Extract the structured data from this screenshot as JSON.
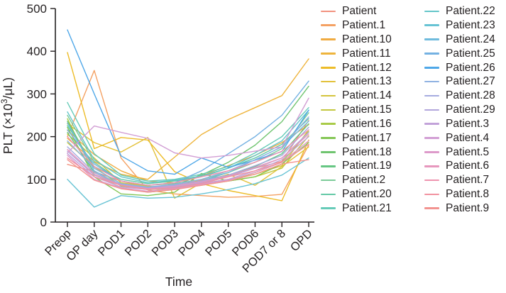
{
  "figure": {
    "background": "#ffffff",
    "text_color": "#231f20",
    "axis_color": "#231f20"
  },
  "chart_data": {
    "type": "line",
    "title": "",
    "xlabel": "Time",
    "ylabel": "PLT (×10³/μL)",
    "ylabel_parts": {
      "pre": "PLT (×10",
      "sup": "3",
      "post": "/μL)"
    },
    "ylim": [
      0,
      500
    ],
    "yticks": [
      0,
      100,
      200,
      300,
      400,
      500
    ],
    "categories": [
      "Preop",
      "OP day",
      "POD1",
      "POD2",
      "POD3",
      "POD4",
      "POD5",
      "POD6",
      "POD7 or 8",
      "OPD"
    ],
    "grid": false,
    "legend_position": "right-two-columns",
    "series": [
      {
        "name": "Patient",
        "color": "#f2917e",
        "values": [
          135,
          118,
          96,
          82,
          86,
          98,
          110,
          126,
          142,
          238
        ]
      },
      {
        "name": "Patient.1",
        "color": "#f4a163",
        "values": [
          200,
          355,
          150,
          75,
          66,
          62,
          58,
          60,
          65,
          180
        ]
      },
      {
        "name": "Patient.10",
        "color": "#f0ab41",
        "values": [
          215,
          158,
          120,
          96,
          92,
          108,
          132,
          156,
          186,
          228
        ]
      },
      {
        "name": "Patient.11",
        "color": "#eeb43c",
        "values": [
          196,
          142,
          112,
          100,
          152,
          205,
          240,
          268,
          296,
          382
        ]
      },
      {
        "name": "Patient.12",
        "color": "#edbc28",
        "values": [
          397,
          172,
          198,
          192,
          118,
          90,
          74,
          62,
          50,
          192
        ]
      },
      {
        "name": "Patient.13",
        "color": "#e3c13a",
        "values": [
          230,
          186,
          164,
          198,
          56,
          92,
          112,
          86,
          130,
          176
        ]
      },
      {
        "name": "Patient.14",
        "color": "#d4c43c",
        "values": [
          206,
          150,
          92,
          84,
          80,
          90,
          100,
          112,
          132,
          216
        ]
      },
      {
        "name": "Patient.15",
        "color": "#c2c73e",
        "values": [
          186,
          130,
          84,
          76,
          78,
          86,
          96,
          106,
          126,
          202
        ]
      },
      {
        "name": "Patient.16",
        "color": "#a9cb48",
        "values": [
          242,
          112,
          80,
          70,
          76,
          88,
          98,
          116,
          140,
          212
        ]
      },
      {
        "name": "Patient.17",
        "color": "#84c655",
        "values": [
          222,
          106,
          66,
          62,
          70,
          114,
          96,
          106,
          136,
          186
        ]
      },
      {
        "name": "Patient.18",
        "color": "#6fc46f",
        "values": [
          236,
          126,
          90,
          80,
          86,
          110,
          140,
          180,
          235,
          318
        ]
      },
      {
        "name": "Patient.19",
        "color": "#66c683",
        "values": [
          210,
          116,
          86,
          78,
          82,
          96,
          110,
          130,
          160,
          230
        ]
      },
      {
        "name": "Patient.2",
        "color": "#7ccb98",
        "values": [
          250,
          140,
          96,
          86,
          90,
          100,
          116,
          140,
          172,
          256
        ]
      },
      {
        "name": "Patient.20",
        "color": "#63c9a6",
        "values": [
          226,
          130,
          100,
          90,
          96,
          106,
          126,
          150,
          182,
          242
        ]
      },
      {
        "name": "Patient.21",
        "color": "#66cbb8",
        "values": [
          280,
          160,
          110,
          96,
          100,
          112,
          130,
          162,
          200,
          268
        ]
      },
      {
        "name": "Patient.22",
        "color": "#63c5c9",
        "values": [
          258,
          146,
          106,
          92,
          98,
          108,
          126,
          156,
          190,
          262
        ]
      },
      {
        "name": "Patient.23",
        "color": "#67c3d4",
        "values": [
          100,
          35,
          62,
          56,
          58,
          66,
          76,
          90,
          110,
          150
        ]
      },
      {
        "name": "Patient.24",
        "color": "#6fbbdd",
        "values": [
          232,
          120,
          86,
          76,
          80,
          96,
          116,
          146,
          176,
          236
        ]
      },
      {
        "name": "Patient.25",
        "color": "#74b1e2",
        "values": [
          216,
          136,
          96,
          86,
          92,
          120,
          160,
          200,
          250,
          330
        ]
      },
      {
        "name": "Patient.26",
        "color": "#4ea7e8",
        "values": [
          450,
          300,
          155,
          120,
          112,
          150,
          128,
          145,
          165,
          262
        ]
      },
      {
        "name": "Patient.27",
        "color": "#8fb2e2",
        "values": [
          190,
          126,
          90,
          82,
          88,
          100,
          120,
          146,
          176,
          246
        ]
      },
      {
        "name": "Patient.28",
        "color": "#a5abe0",
        "values": [
          176,
          116,
          88,
          80,
          86,
          96,
          110,
          132,
          156,
          222
        ]
      },
      {
        "name": "Patient.29",
        "color": "#b2a6dc",
        "values": [
          166,
          110,
          86,
          78,
          82,
          92,
          106,
          126,
          150,
          210
        ]
      },
      {
        "name": "Patient.3",
        "color": "#c2a2d9",
        "values": [
          160,
          106,
          82,
          76,
          80,
          90,
          100,
          120,
          146,
          200
        ]
      },
      {
        "name": "Patient.4",
        "color": "#d29ed4",
        "values": [
          162,
          225,
          210,
          196,
          162,
          150,
          156,
          166,
          176,
          290
        ]
      },
      {
        "name": "Patient.5",
        "color": "#dd9aca",
        "values": [
          156,
          100,
          80,
          72,
          78,
          88,
          98,
          116,
          140,
          190
        ]
      },
      {
        "name": "Patient.6",
        "color": "#e797bd",
        "values": [
          170,
          112,
          86,
          78,
          84,
          94,
          108,
          128,
          150,
          206
        ]
      },
      {
        "name": "Patient.7",
        "color": "#ee93af",
        "values": [
          200,
          130,
          96,
          86,
          92,
          106,
          120,
          140,
          166,
          216
        ]
      },
      {
        "name": "Patient.8",
        "color": "#f192a0",
        "values": [
          150,
          106,
          86,
          76,
          80,
          90,
          106,
          120,
          140,
          182
        ]
      },
      {
        "name": "Patient.9",
        "color": "#f29390",
        "values": [
          146,
          98,
          78,
          70,
          76,
          86,
          96,
          112,
          136,
          146
        ]
      }
    ]
  }
}
